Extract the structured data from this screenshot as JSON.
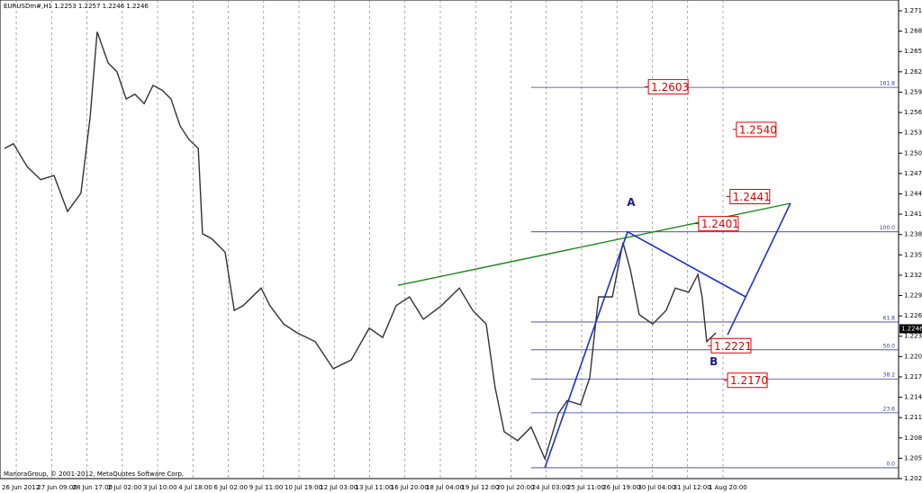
{
  "chart_data": {
    "type": "line",
    "title": "EURUSDm#,H1 1.2253 1.2257 1.2246 1.2246",
    "footer": "ManoraGroup, © 2001-2012, MetaQuotes Software Corp.",
    "current_price": 1.2246,
    "series": [
      {
        "name": "EURUSDm#",
        "color": "#333333",
        "x": [
          -0.33,
          -0.08,
          0.31,
          0.69,
          1.07,
          1.45,
          1.83,
          2.09,
          2.29,
          2.6,
          2.85,
          3.11,
          3.36,
          3.62,
          3.87,
          4.13,
          4.38,
          4.64,
          4.89,
          5.15,
          5.27,
          5.53,
          5.91,
          6.17,
          6.42,
          6.93,
          7.18,
          7.57,
          7.95,
          8.46,
          8.97,
          9.48,
          9.99,
          10.37,
          10.75,
          11.13,
          11.52,
          12.03,
          12.54,
          12.92,
          13.3,
          13.55,
          13.81,
          14.19,
          14.57,
          14.96,
          15.34,
          15.59,
          15.97,
          16.23,
          16.48,
          16.87,
          17.17,
          17.38,
          17.63,
          18.01,
          18.39,
          18.65,
          19.03,
          19.29,
          19.41,
          19.54,
          19.8
        ],
        "values": [
          1.2512,
          1.2519,
          1.2485,
          1.2466,
          1.2472,
          1.2419,
          1.2446,
          1.2558,
          1.2684,
          1.2638,
          1.2625,
          1.2585,
          1.2592,
          1.2578,
          1.2605,
          1.2598,
          1.2585,
          1.2545,
          1.2525,
          1.2512,
          1.2386,
          1.2379,
          1.2359,
          1.2273,
          1.228,
          1.2306,
          1.228,
          1.2253,
          1.224,
          1.2227,
          1.2187,
          1.22,
          1.2247,
          1.2233,
          1.228,
          1.2293,
          1.226,
          1.228,
          1.2306,
          1.2273,
          1.2253,
          1.216,
          1.2094,
          1.2081,
          1.2101,
          1.2054,
          1.2121,
          1.214,
          1.2134,
          1.2174,
          1.2293,
          1.2293,
          1.2373,
          1.2333,
          1.2267,
          1.2253,
          1.2273,
          1.2306,
          1.23,
          1.2326,
          1.2293,
          1.2227,
          1.224
        ]
      }
    ],
    "xlim": [
      -0.46,
      24.97
    ],
    "ylim": [
      1.2025,
      1.2715
    ],
    "xticks": [
      {
        "value": 0,
        "label": "26 Jun 2012"
      },
      {
        "value": 1,
        "label": "27 Jun 09:00"
      },
      {
        "value": 2,
        "label": "28 Jun 17:00"
      },
      {
        "value": 3,
        "label": "2 Jul 02:00"
      },
      {
        "value": 4,
        "label": "3 Jul 10:00"
      },
      {
        "value": 5,
        "label": "4 Jul 18:00"
      },
      {
        "value": 6,
        "label": "6 Jul 02:00"
      },
      {
        "value": 7,
        "label": "9 Jul 11:00"
      },
      {
        "value": 8,
        "label": "10 Jul 19:00"
      },
      {
        "value": 9,
        "label": "12 Jul 03:00"
      },
      {
        "value": 10,
        "label": "13 Jul 11:00"
      },
      {
        "value": 11,
        "label": "16 Jul 20:00"
      },
      {
        "value": 12,
        "label": "18 Jul 04:00"
      },
      {
        "value": 13,
        "label": "19 Jul 12:00"
      },
      {
        "value": 14,
        "label": "20 Jul 20:00"
      },
      {
        "value": 15,
        "label": "24 Jul 03:00"
      },
      {
        "value": 16,
        "label": "25 Jul 11:00"
      },
      {
        "value": 17,
        "label": "26 Jul 19:00"
      },
      {
        "value": 18,
        "label": "30 Jul 04:00"
      },
      {
        "value": 19,
        "label": "31 Jul 12:00"
      },
      {
        "value": 20,
        "label": "1 Aug 20:00"
      }
    ],
    "yticks": [
      1.2025,
      1.2055,
      1.2085,
      1.2115,
      1.2145,
      1.2175,
      1.2205,
      1.2235,
      1.2265,
      1.2295,
      1.2325,
      1.2355,
      1.2385,
      1.2415,
      1.2445,
      1.2475,
      1.2505,
      1.2535,
      1.2565,
      1.2595,
      1.2625,
      1.2655,
      1.2685,
      1.2715
    ],
    "grid": true,
    "fib_start": 14.57,
    "fib_levels": [
      {
        "label": "161.8",
        "value": 1.2602
      },
      {
        "label": "100.0",
        "value": 1.2389
      },
      {
        "label": "61.8",
        "value": 1.2256
      },
      {
        "label": "50.0",
        "value": 1.2215
      },
      {
        "label": "38.2",
        "value": 1.2172
      },
      {
        "label": "23.6",
        "value": 1.2122
      },
      {
        "label": "0.0",
        "value": 1.2041
      }
    ],
    "price_boxes": [
      {
        "value": 1.2603,
        "label": "1.2603",
        "x": 17.89
      },
      {
        "value": 1.254,
        "label": "1.2540",
        "x": 20.38
      },
      {
        "value": 1.2441,
        "label": "1.2441",
        "x": 20.2
      },
      {
        "value": 1.2401,
        "label": "1.2401",
        "x": 19.31
      },
      {
        "value": 1.2221,
        "label": "1.2221",
        "x": 19.67
      },
      {
        "value": 1.217,
        "label": "1.2170",
        "x": 20.13
      }
    ],
    "trend_line": {
      "color": "#1a8a1a",
      "x": [
        10.8,
        21.91
      ],
      "values": [
        1.231,
        1.2431
      ]
    },
    "wave_lines": [
      {
        "color": "#1e32d0",
        "x": [
          14.96,
          17.3,
          20.64
        ],
        "values": [
          1.2041,
          1.2389,
          1.2293
        ]
      },
      {
        "color": "#1e32d0",
        "x": [
          20.13,
          21.91
        ],
        "values": [
          1.2237,
          1.2431
        ]
      }
    ],
    "points": [
      {
        "label": "A",
        "x": 17.4,
        "value": 1.2432
      },
      {
        "label": "B",
        "x": 19.74,
        "value": 1.2197
      }
    ]
  }
}
